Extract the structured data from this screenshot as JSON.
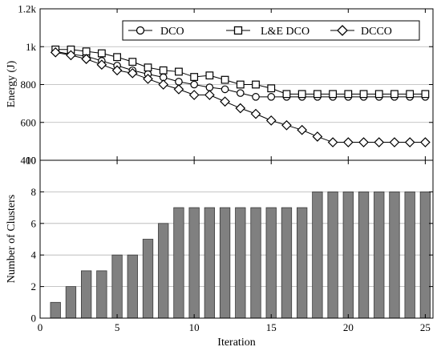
{
  "chart_data": [
    {
      "type": "line",
      "ylabel": "Energy (J)",
      "ylim": [
        400,
        1200
      ],
      "yticks": [
        400,
        600,
        800,
        1000,
        1200
      ],
      "ytick_labels": [
        "400",
        "600",
        "800",
        "1k",
        "1.2k"
      ],
      "xlim": [
        0,
        25.5
      ],
      "grid": "horizontal",
      "legend_position": "top",
      "x": [
        1,
        2,
        3,
        4,
        5,
        6,
        7,
        8,
        9,
        10,
        11,
        12,
        13,
        14,
        15,
        16,
        17,
        18,
        19,
        20,
        21,
        22,
        23,
        24,
        25
      ],
      "series": [
        {
          "name": "DCO",
          "marker": "circle",
          "values": [
            975,
            960,
            950,
            925,
            900,
            875,
            855,
            838,
            815,
            800,
            785,
            775,
            755,
            735,
            735,
            735,
            735,
            735,
            735,
            735,
            735,
            735,
            735,
            735,
            735
          ]
        },
        {
          "name": "L&E DCO",
          "marker": "square",
          "values": [
            985,
            985,
            975,
            965,
            945,
            920,
            890,
            875,
            868,
            840,
            848,
            825,
            800,
            800,
            780,
            750,
            750,
            750,
            750,
            750,
            750,
            750,
            750,
            750,
            750
          ]
        },
        {
          "name": "DCCO",
          "marker": "diamond",
          "values": [
            970,
            955,
            935,
            905,
            875,
            860,
            830,
            800,
            775,
            745,
            745,
            710,
            675,
            645,
            610,
            585,
            560,
            525,
            495,
            495,
            495,
            495,
            495,
            495,
            495
          ]
        }
      ]
    },
    {
      "type": "bar",
      "xlabel": "Iteration",
      "ylabel": "Number of Clusters",
      "ylim": [
        0,
        10
      ],
      "yticks": [
        0,
        2,
        4,
        6,
        8,
        10
      ],
      "xlim": [
        0,
        25.5
      ],
      "xticks": [
        0,
        5,
        10,
        15,
        20,
        25
      ],
      "grid": "horizontal",
      "bar_color": "#808080",
      "categories": [
        1,
        2,
        3,
        4,
        5,
        6,
        7,
        8,
        9,
        10,
        11,
        12,
        13,
        14,
        15,
        16,
        17,
        18,
        19,
        20,
        21,
        22,
        23,
        24,
        25
      ],
      "values": [
        1,
        2,
        3,
        3,
        4,
        4,
        5,
        6,
        7,
        7,
        7,
        7,
        7,
        7,
        7,
        7,
        7,
        8,
        8,
        8,
        8,
        8,
        8,
        8,
        8
      ]
    }
  ]
}
